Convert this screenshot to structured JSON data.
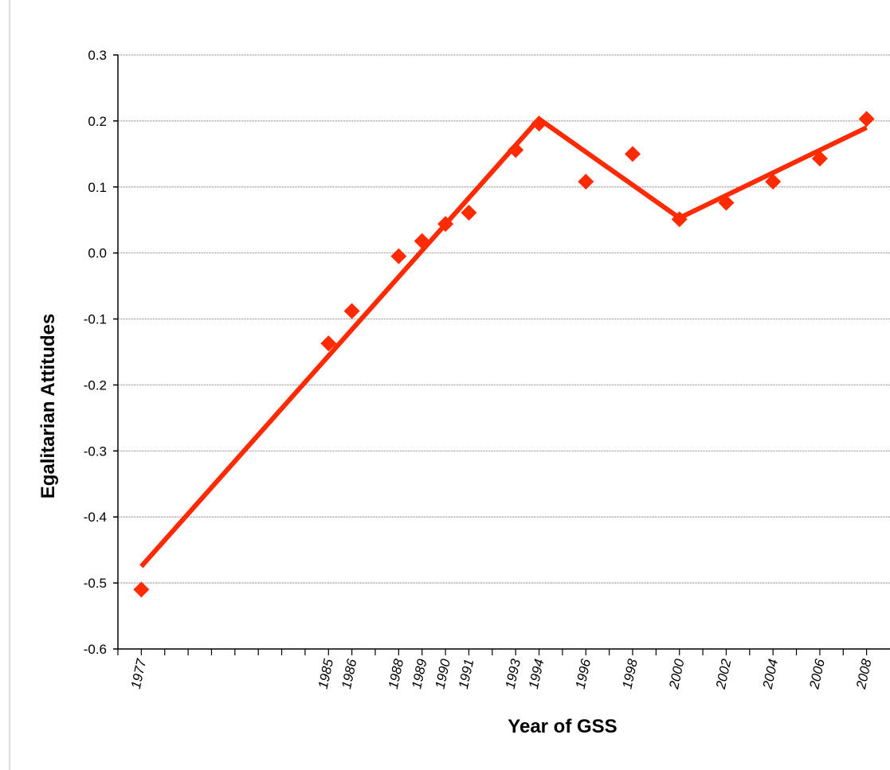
{
  "chart_data": {
    "type": "scatter",
    "xlabel": "Year of GSS",
    "ylabel": "Egalitarian Attitudes",
    "x": [
      1977,
      1985,
      1986,
      1988,
      1989,
      1990,
      1991,
      1993,
      1994,
      1996,
      1998,
      2000,
      2002,
      2004,
      2006,
      2008
    ],
    "values": [
      -0.51,
      -0.137,
      -0.088,
      -0.005,
      0.018,
      0.044,
      0.061,
      0.156,
      0.196,
      0.108,
      0.15,
      0.051,
      0.076,
      0.108,
      0.143,
      0.203
    ],
    "color": "#ff2a00",
    "fit": {
      "x": [
        1977,
        1994,
        2000,
        2008
      ],
      "values": [
        -0.475,
        0.203,
        0.053,
        0.19
      ],
      "color": "#ff2a00"
    },
    "xlim": [
      1976,
      2009
    ],
    "xticks": [
      1977,
      1985,
      1986,
      1988,
      1989,
      1990,
      1991,
      1993,
      1994,
      1996,
      1998,
      2000,
      2002,
      2004,
      2006,
      2008
    ],
    "xminor_ticks": [
      1976,
      1978,
      1979,
      1980,
      1981,
      1982,
      1983,
      1984,
      1987,
      1992,
      1995,
      1997,
      1999,
      2001,
      2003,
      2005,
      2007
    ],
    "ylim": [
      -0.6,
      0.3
    ],
    "yticks": [
      -0.6,
      -0.5,
      -0.4,
      -0.3,
      -0.2,
      -0.1,
      {
        "value": 0,
        "label": "0.0"
      },
      0.1,
      0.2,
      0.3
    ],
    "grid": true
  }
}
